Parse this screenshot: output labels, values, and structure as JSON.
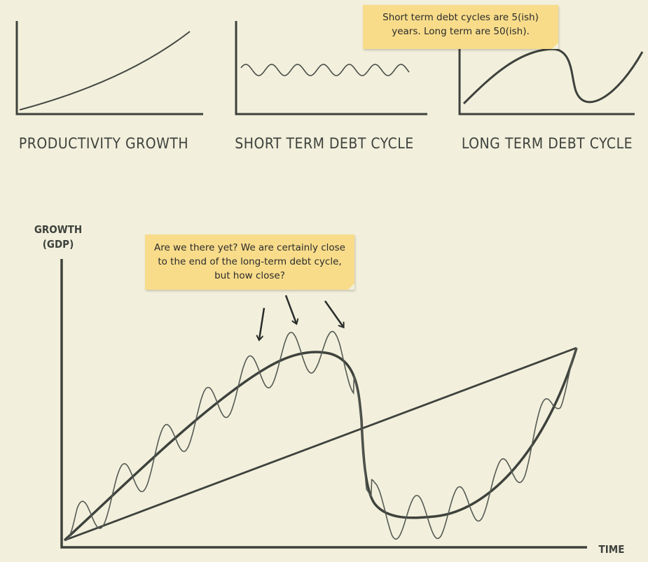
{
  "small_charts": [
    {
      "caption": "PRODUCTIVITY GROWTH",
      "curve": "productivity"
    },
    {
      "caption": "SHORT TERM DEBT CYCLE",
      "curve": "short-cycle"
    },
    {
      "caption": "LONG TERM DEBT CYCLE",
      "curve": "long-cycle"
    }
  ],
  "main_chart": {
    "ylabel_line1": "GROWTH",
    "ylabel_line2": "(GDP)",
    "xlabel": "TIME"
  },
  "notes": {
    "top": "Short term debt cycles are 5(ish) years. Long term are 50(ish).",
    "main": "Are we there yet? We are certainly close to the end of the long-term debt cycle, but how close?"
  },
  "colors": {
    "background": "#f2f0dc",
    "ink": "#3e423d",
    "sticky_note": "#f8dc8a"
  }
}
